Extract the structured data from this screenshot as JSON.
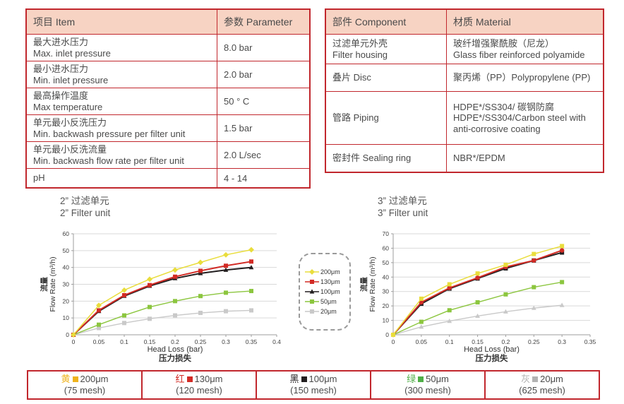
{
  "colors": {
    "table_border": "#c1272d",
    "table_header_bg": "#f7d3c3",
    "text": "#4a4a4a"
  },
  "spec_table": {
    "headers": [
      "项目 Item",
      "参数 Parameter"
    ],
    "rows": [
      {
        "zh": "最大进水压力",
        "en": "Max. inlet pressure",
        "value": "8.0 bar"
      },
      {
        "zh": "最小进水压力",
        "en": "Min. inlet pressure",
        "value": "2.0 bar"
      },
      {
        "zh": "最高操作温度",
        "en": "Max temperature",
        "value": "50 ° C"
      },
      {
        "zh": "单元最小反洗压力",
        "en": "Min. backwash pressure per filter unit",
        "value": "1.5 bar"
      },
      {
        "zh": "单元最小反洗流量",
        "en": "Min. backwash flow rate per filter unit",
        "value": "2.0 L/sec"
      },
      {
        "zh": "pH",
        "en": "",
        "value": "4 - 14"
      }
    ]
  },
  "material_table": {
    "headers": [
      "部件 Component",
      "材质 Material"
    ],
    "rows": [
      {
        "comp_zh": "过滤单元外壳",
        "comp_en": "Filter housing",
        "mat_zh": "玻纤增强聚酰胺（尼龙）",
        "mat_en": "Glass fiber reinforced polyamide"
      },
      {
        "comp_zh": "叠片 Disc",
        "comp_en": "",
        "mat_zh": "聚丙烯（PP）Polypropylene (PP)",
        "mat_en": ""
      },
      {
        "comp_zh": "管路 Piping",
        "comp_en": "",
        "mat_zh": "HDPE*/SS304/ 碳钢防腐",
        "mat_en": "HDPE*/SS304/Carbon steel with anti-corrosive coating"
      },
      {
        "comp_zh": "密封件 Sealing ring",
        "comp_en": "",
        "mat_zh": "NBR*/EPDM",
        "mat_en": ""
      }
    ]
  },
  "chart_data": [
    {
      "type": "line",
      "title_zh": "2” 过滤单元",
      "title_en": "2” Filter unit",
      "ylabel_zh": "流量",
      "ylabel": "Flow Rate (m³/h)",
      "xlabel": "Head Loss (bar)",
      "xlabel_zh": "压力损失",
      "xlim": [
        0,
        0.4
      ],
      "ylim": [
        0,
        60
      ],
      "xticks": [
        "0",
        "0.05",
        "0.1",
        "0.15",
        "0.2",
        "0.25",
        "0.3",
        "0.35",
        "0.4"
      ],
      "yticks": [
        0,
        10,
        20,
        30,
        40,
        50,
        60
      ],
      "grid": "horizontal",
      "legend_position": "right-box",
      "x": [
        0,
        0.05,
        0.1,
        0.15,
        0.2,
        0.25,
        0.3,
        0.35
      ],
      "series": [
        {
          "name": "200μm",
          "color": "#e9dd3c",
          "marker": "diamond",
          "values": [
            0,
            17.5,
            26.5,
            33,
            38.5,
            43,
            47.5,
            50.5
          ]
        },
        {
          "name": "130μm",
          "color": "#d22b25",
          "marker": "square",
          "values": [
            0,
            14.5,
            23.5,
            29.5,
            34.5,
            38,
            41,
            43.5
          ]
        },
        {
          "name": "100μm",
          "color": "#231f20",
          "marker": "triangle",
          "values": [
            0,
            14,
            23,
            29,
            33.5,
            36.5,
            38.5,
            40
          ]
        },
        {
          "name": "50μm",
          "color": "#8cc63f",
          "marker": "square",
          "values": [
            0,
            6,
            11.5,
            16.5,
            20,
            23,
            25,
            26
          ]
        },
        {
          "name": "20μm",
          "color": "#c9c9c9",
          "marker": "square",
          "values": [
            0,
            4,
            7,
            9.5,
            11.5,
            13,
            14,
            14.5
          ]
        }
      ]
    },
    {
      "type": "line",
      "title_zh": "3” 过滤单元",
      "title_en": "3” Filter unit",
      "ylabel_zh": "流量",
      "ylabel": "Flow Rate (m³/h)",
      "xlabel": "Head Loss (bar)",
      "xlabel_zh": "压力损失",
      "xlim": [
        0,
        0.35
      ],
      "ylim": [
        0,
        70
      ],
      "xticks": [
        "0",
        "0.05",
        "0.1",
        "0.15",
        "0.2",
        "0.25",
        "0.3",
        "0.35"
      ],
      "yticks": [
        0,
        10,
        20,
        30,
        40,
        50,
        60,
        70
      ],
      "grid": "horizontal",
      "legend_position": "none",
      "x": [
        0,
        0.05,
        0.1,
        0.15,
        0.2,
        0.25,
        0.3
      ],
      "series": [
        {
          "name": "200μm",
          "color": "#e9dd3c",
          "marker": "square",
          "values": [
            0,
            25,
            35,
            42.5,
            48.5,
            56,
            61.5
          ]
        },
        {
          "name": "130μm",
          "color": "#d22b25",
          "marker": "circle",
          "values": [
            0,
            22.5,
            32.5,
            39.5,
            47,
            51.5,
            58.5
          ]
        },
        {
          "name": "100μm",
          "color": "#231f20",
          "marker": "square",
          "values": [
            0,
            21.5,
            32,
            39,
            46,
            51.5,
            57
          ]
        },
        {
          "name": "50μm",
          "color": "#8cc63f",
          "marker": "square",
          "values": [
            0,
            9,
            17,
            22.5,
            28,
            33,
            36.5
          ]
        },
        {
          "name": "20μm",
          "color": "#c9c9c9",
          "marker": "triangle",
          "values": [
            0,
            5.5,
            9.5,
            13,
            16,
            18.5,
            20.5
          ]
        }
      ]
    }
  ],
  "bottom_legend": [
    {
      "zh": "黄",
      "size": "200μm",
      "mesh": "(75 mesh)",
      "color": "#efb31d"
    },
    {
      "zh": "红",
      "size": "130μm",
      "mesh": "(120 mesh)",
      "color": "#d22b25"
    },
    {
      "zh": "黑",
      "size": "100μm",
      "mesh": "(150 mesh)",
      "color": "#231f20"
    },
    {
      "zh": "绿",
      "size": "50μm",
      "mesh": "(300 mesh)",
      "color": "#4fae47"
    },
    {
      "zh": "灰",
      "size": "20μm",
      "mesh": "(625 mesh)",
      "color": "#b3b3b3"
    }
  ]
}
